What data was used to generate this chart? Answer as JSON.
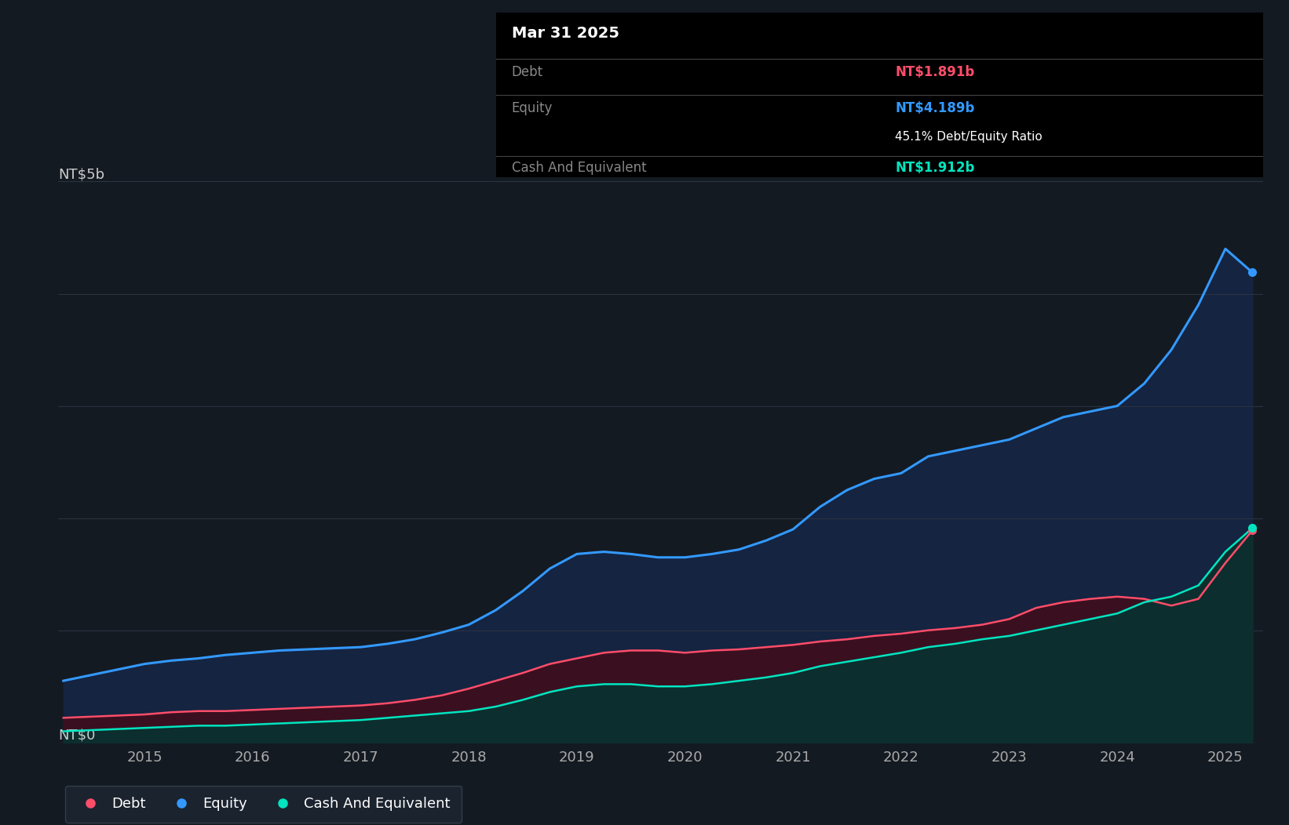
{
  "bg_color": "#141a22",
  "plot_bg_color": "#141a22",
  "grid_color": "#2a3340",
  "equity_color": "#3399ff",
  "debt_color": "#ff4d6a",
  "cash_color": "#00e5c0",
  "equity_fill": "#152440",
  "debt_fill": "#3a1020",
  "cash_fill": "#0d2e2e",
  "tooltip_bg": "#000000",
  "tooltip_title": "Mar 31 2025",
  "tooltip_debt_label": "Debt",
  "tooltip_debt_value": "NT$1.891b",
  "tooltip_equity_label": "Equity",
  "tooltip_equity_value": "NT$4.189b",
  "tooltip_ratio": "45.1% Debt/Equity Ratio",
  "tooltip_cash_label": "Cash And Equivalent",
  "tooltip_cash_value": "NT$1.912b",
  "legend_items": [
    "Debt",
    "Equity",
    "Cash And Equivalent"
  ],
  "legend_colors": [
    "#ff4d6a",
    "#3399ff",
    "#00e5c0"
  ],
  "ylabel_5b": "NT$5b",
  "ylabel_0": "NT$0",
  "x_ticks": [
    2015,
    2016,
    2017,
    2018,
    2019,
    2020,
    2021,
    2022,
    2023,
    2024,
    2025
  ],
  "dates": [
    2014.25,
    2014.5,
    2014.75,
    2015.0,
    2015.25,
    2015.5,
    2015.75,
    2016.0,
    2016.25,
    2016.5,
    2016.75,
    2017.0,
    2017.25,
    2017.5,
    2017.75,
    2018.0,
    2018.25,
    2018.5,
    2018.75,
    2019.0,
    2019.25,
    2019.5,
    2019.75,
    2020.0,
    2020.25,
    2020.5,
    2020.75,
    2021.0,
    2021.25,
    2021.5,
    2021.75,
    2022.0,
    2022.25,
    2022.5,
    2022.75,
    2023.0,
    2023.25,
    2023.5,
    2023.75,
    2024.0,
    2024.25,
    2024.5,
    2024.75,
    2025.0,
    2025.25
  ],
  "equity": [
    0.55,
    0.6,
    0.65,
    0.7,
    0.73,
    0.75,
    0.78,
    0.8,
    0.82,
    0.83,
    0.84,
    0.85,
    0.88,
    0.92,
    0.98,
    1.05,
    1.18,
    1.35,
    1.55,
    1.68,
    1.7,
    1.68,
    1.65,
    1.65,
    1.68,
    1.72,
    1.8,
    1.9,
    2.1,
    2.25,
    2.35,
    2.4,
    2.55,
    2.6,
    2.65,
    2.7,
    2.8,
    2.9,
    2.95,
    3.0,
    3.2,
    3.5,
    3.9,
    4.4,
    4.189
  ],
  "debt": [
    0.22,
    0.23,
    0.24,
    0.25,
    0.27,
    0.28,
    0.28,
    0.29,
    0.3,
    0.31,
    0.32,
    0.33,
    0.35,
    0.38,
    0.42,
    0.48,
    0.55,
    0.62,
    0.7,
    0.75,
    0.8,
    0.82,
    0.82,
    0.8,
    0.82,
    0.83,
    0.85,
    0.87,
    0.9,
    0.92,
    0.95,
    0.97,
    1.0,
    1.02,
    1.05,
    1.1,
    1.2,
    1.25,
    1.28,
    1.3,
    1.28,
    1.22,
    1.28,
    1.6,
    1.891
  ],
  "cash": [
    0.1,
    0.11,
    0.12,
    0.13,
    0.14,
    0.15,
    0.15,
    0.16,
    0.17,
    0.18,
    0.19,
    0.2,
    0.22,
    0.24,
    0.26,
    0.28,
    0.32,
    0.38,
    0.45,
    0.5,
    0.52,
    0.52,
    0.5,
    0.5,
    0.52,
    0.55,
    0.58,
    0.62,
    0.68,
    0.72,
    0.76,
    0.8,
    0.85,
    0.88,
    0.92,
    0.95,
    1.0,
    1.05,
    1.1,
    1.15,
    1.25,
    1.3,
    1.4,
    1.7,
    1.912
  ],
  "ylim": [
    0,
    5.0
  ],
  "xlim": [
    2014.2,
    2025.35
  ]
}
